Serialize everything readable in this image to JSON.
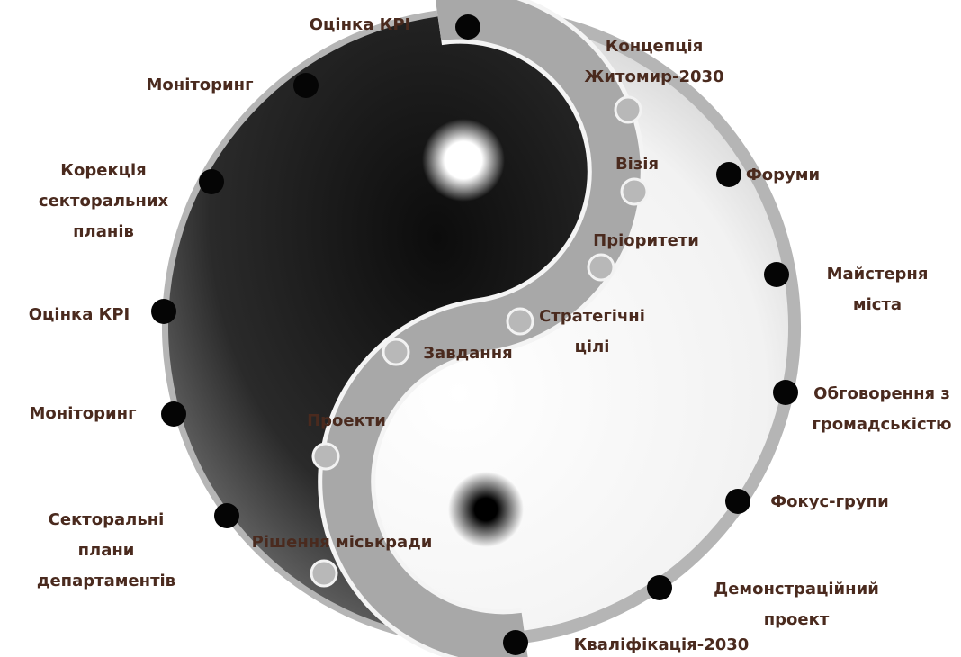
{
  "left_steps": [
    [
      "Оцінка КРІ"
    ],
    [
      "Моніторинг"
    ],
    [
      "Корекція",
      "секторальних",
      "планів"
    ],
    [
      "Оцінка КРІ"
    ],
    [
      "Моніторинг"
    ],
    [
      "Секторальні",
      "плани",
      "департаментів"
    ]
  ],
  "right_steps": [
    [
      "Форуми"
    ],
    [
      "Майстерня",
      "міста"
    ],
    [
      "Обговорення з",
      "громадськістю"
    ],
    [
      "Фокус-групи"
    ],
    [
      "Демонстраційний",
      "проект"
    ],
    [
      "Кваліфікація-2030"
    ]
  ],
  "path_steps": [
    [
      "Концепція",
      "Житомир-2030"
    ],
    [
      "Візія"
    ],
    [
      "Пріоритети"
    ],
    [
      "Стратегічні",
      "цілі"
    ],
    [
      "Завдання"
    ],
    [
      "Проекти"
    ],
    [
      "Рішення міськради"
    ]
  ]
}
